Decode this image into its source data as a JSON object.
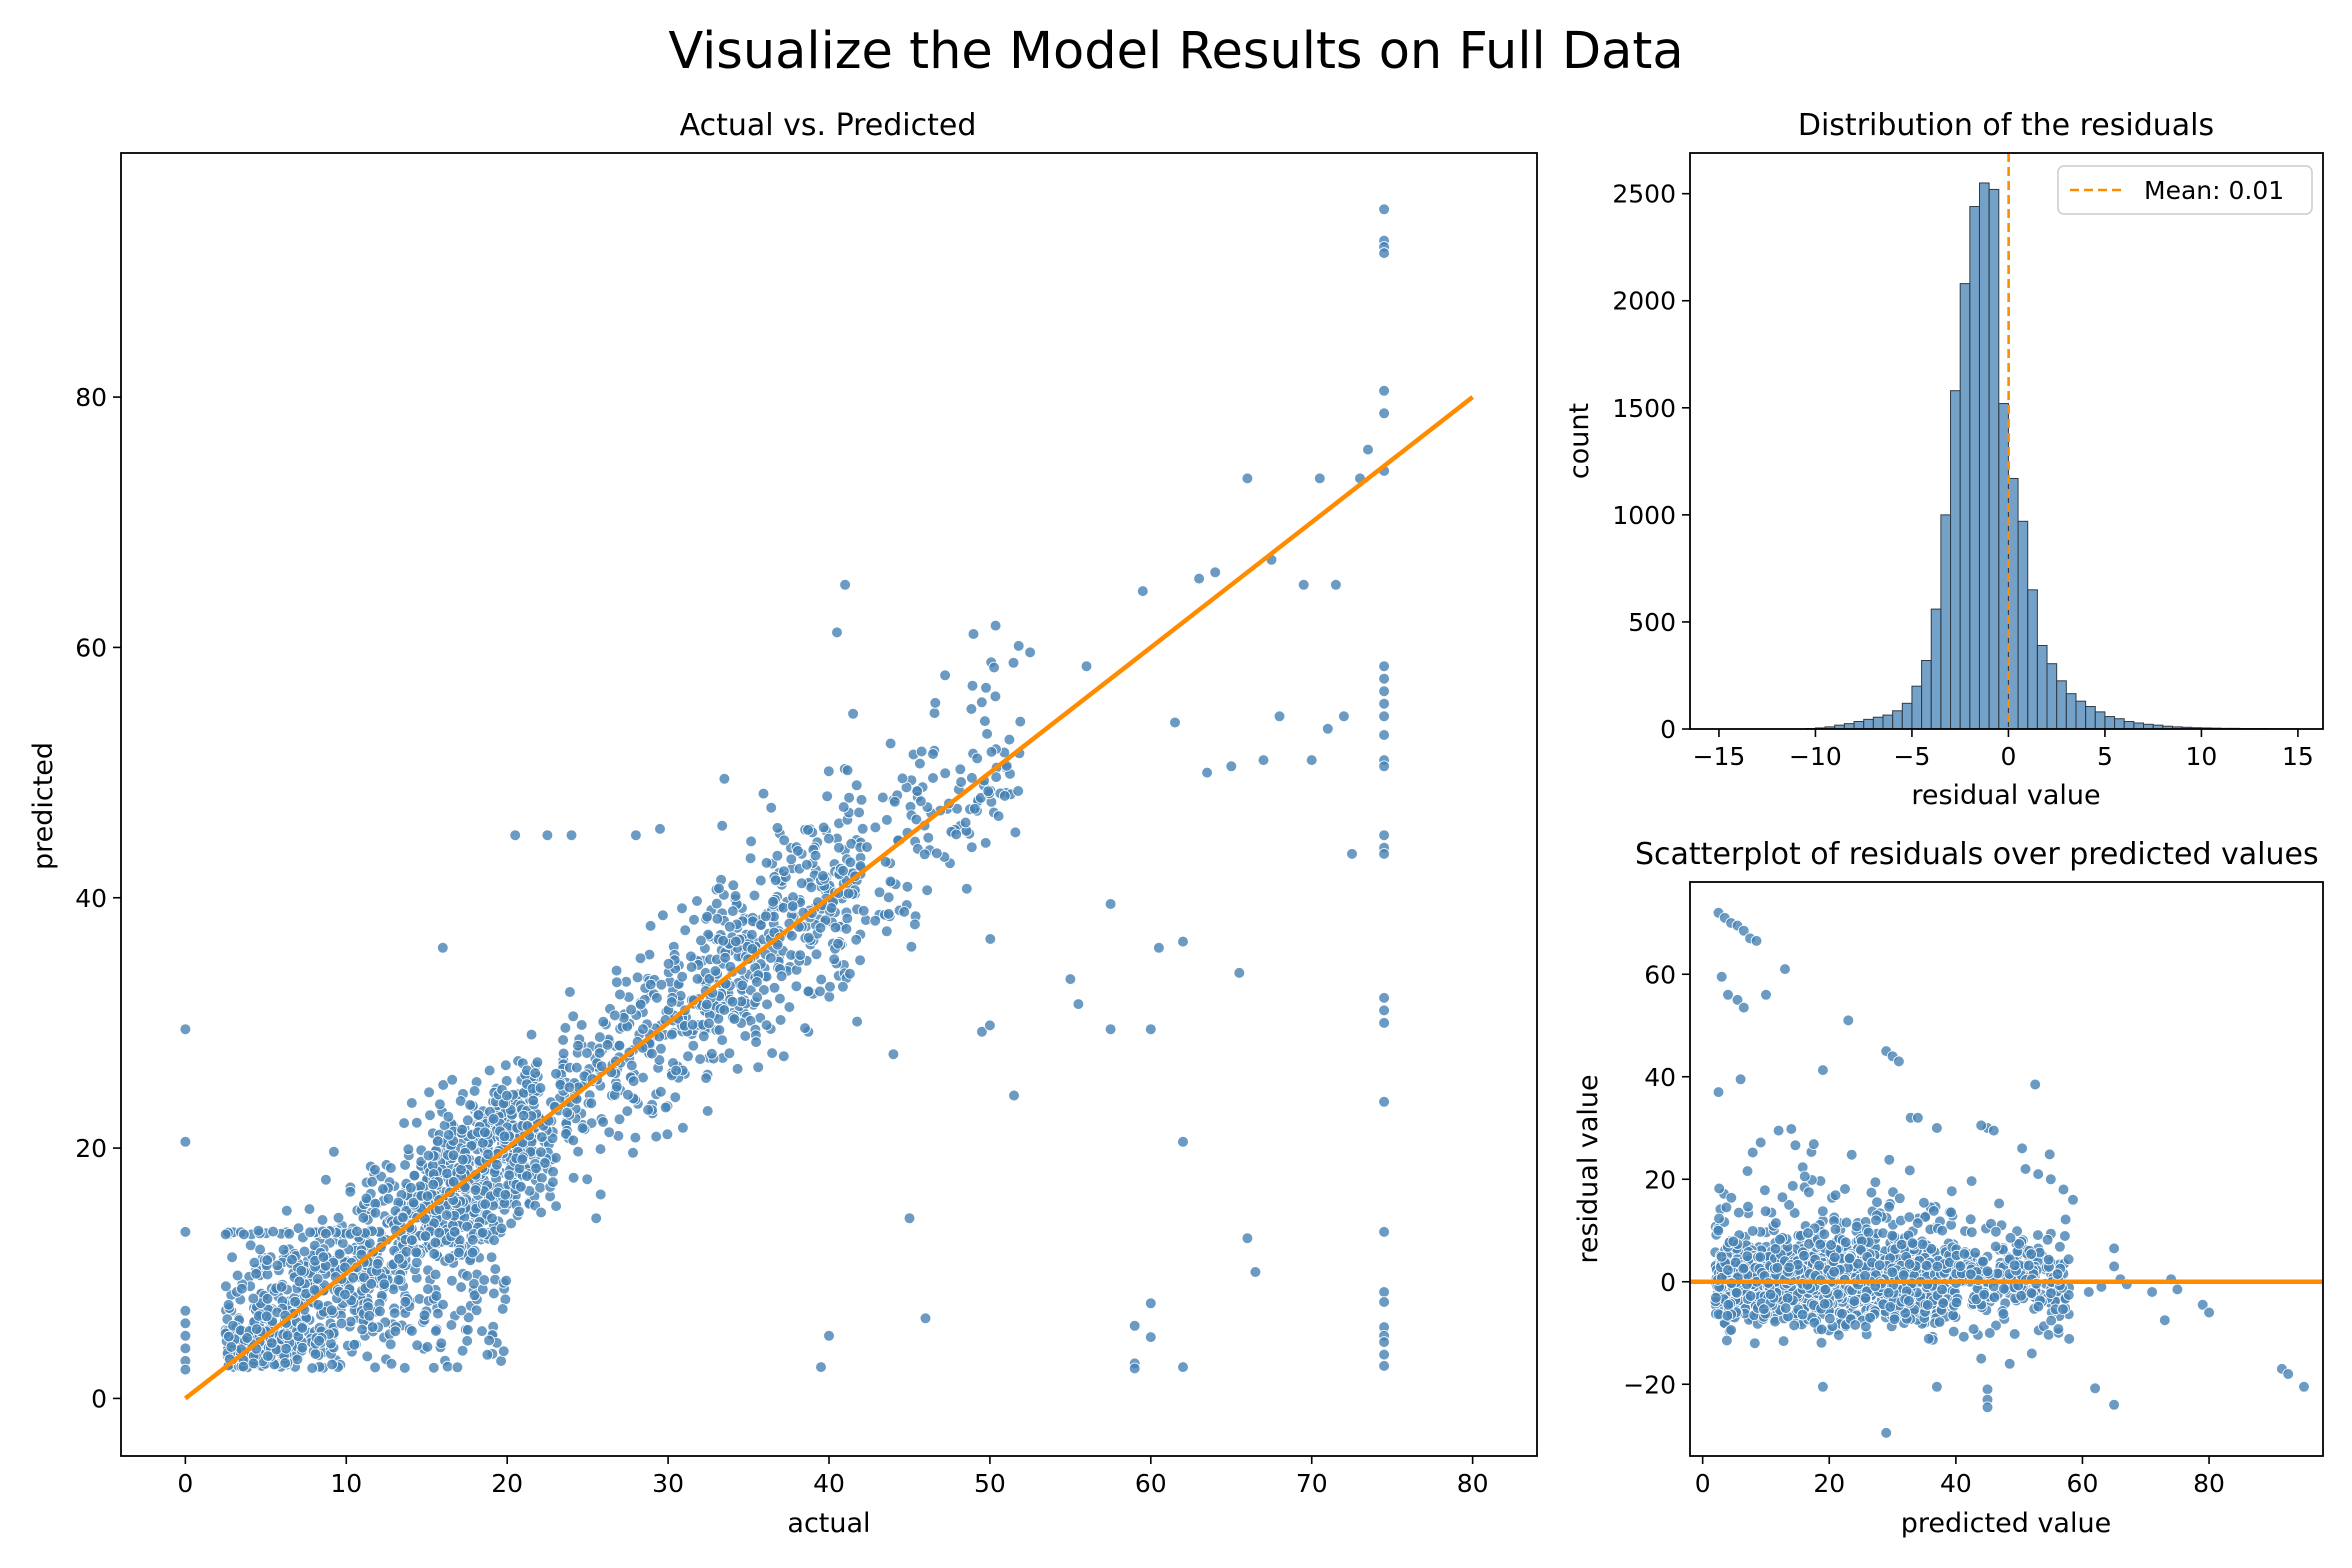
{
  "figure_title": "Visualize the Model Results on Full Data",
  "colors": {
    "points": "#4682b4",
    "line": "#ff8c00",
    "bars": "#4682b4",
    "point_edge": "#ffffff"
  },
  "chart_data": [
    {
      "id": "actual_vs_predicted",
      "type": "scatter",
      "title": "Actual vs. Predicted",
      "xlabel": "actual",
      "ylabel": "predicted",
      "xlim": [
        -4,
        84
      ],
      "ylim": [
        -4.6,
        99.5
      ],
      "xticks": [
        0,
        10,
        20,
        30,
        40,
        50,
        60,
        70,
        80
      ],
      "yticks": [
        0,
        20,
        40,
        60,
        80
      ],
      "reference_line": {
        "x": [
          0,
          80
        ],
        "y": [
          0,
          80
        ]
      },
      "approx_n_points": 20000,
      "cloud": [
        {
          "x_range": [
            2.5,
            22
          ],
          "y_center": "x",
          "spread": 3.0,
          "weight": 0.42
        },
        {
          "x_range": [
            15,
            42
          ],
          "y_center": "x",
          "spread": 4.0,
          "weight": 0.3
        },
        {
          "x_range": [
            32,
            52
          ],
          "y_center": "x",
          "spread": 4.5,
          "weight": 0.12
        }
      ],
      "outliers": [
        {
          "x": 0,
          "y": 29.5
        },
        {
          "x": 0,
          "y": 20.5
        },
        {
          "x": 0,
          "y": 13.3
        },
        {
          "x": 0,
          "y": 7
        },
        {
          "x": 0,
          "y": 6
        },
        {
          "x": 0,
          "y": 5
        },
        {
          "x": 0,
          "y": 4
        },
        {
          "x": 0,
          "y": 3
        },
        {
          "x": 0,
          "y": 2.3
        },
        {
          "x": 16,
          "y": 36
        },
        {
          "x": 20.5,
          "y": 45
        },
        {
          "x": 22.5,
          "y": 45
        },
        {
          "x": 24,
          "y": 45
        },
        {
          "x": 28,
          "y": 45
        },
        {
          "x": 29.5,
          "y": 45.5
        },
        {
          "x": 33.5,
          "y": 49.5
        },
        {
          "x": 40.5,
          "y": 61.2
        },
        {
          "x": 41,
          "y": 65
        },
        {
          "x": 41.5,
          "y": 54.7
        },
        {
          "x": 46,
          "y": 6.4
        },
        {
          "x": 45,
          "y": 14.4
        },
        {
          "x": 40,
          "y": 5
        },
        {
          "x": 39.5,
          "y": 2.5
        },
        {
          "x": 44,
          "y": 27.5
        },
        {
          "x": 49.5,
          "y": 29.3
        },
        {
          "x": 50,
          "y": 29.8
        },
        {
          "x": 51.5,
          "y": 24.2
        },
        {
          "x": 52.5,
          "y": 59.6
        },
        {
          "x": 55,
          "y": 33.5
        },
        {
          "x": 55.5,
          "y": 31.5
        },
        {
          "x": 56,
          "y": 58.5
        },
        {
          "x": 57.5,
          "y": 29.5
        },
        {
          "x": 57.5,
          "y": 39.5
        },
        {
          "x": 59.5,
          "y": 64.5
        },
        {
          "x": 60,
          "y": 29.5
        },
        {
          "x": 60.5,
          "y": 36
        },
        {
          "x": 62,
          "y": 36.5
        },
        {
          "x": 63,
          "y": 65.5
        },
        {
          "x": 64,
          "y": 66
        },
        {
          "x": 65.5,
          "y": 34
        },
        {
          "x": 66,
          "y": 73.5
        },
        {
          "x": 66,
          "y": 12.8
        },
        {
          "x": 66.5,
          "y": 10.1
        },
        {
          "x": 59,
          "y": 5.8
        },
        {
          "x": 59,
          "y": 2.8
        },
        {
          "x": 59,
          "y": 2.4
        },
        {
          "x": 60,
          "y": 4.9
        },
        {
          "x": 60,
          "y": 7.6
        },
        {
          "x": 62,
          "y": 2.5
        },
        {
          "x": 62,
          "y": 20.5
        },
        {
          "x": 67.5,
          "y": 67
        },
        {
          "x": 69.5,
          "y": 65
        },
        {
          "x": 70.5,
          "y": 73.5
        },
        {
          "x": 71.5,
          "y": 65
        },
        {
          "x": 72.5,
          "y": 43.5
        },
        {
          "x": 73,
          "y": 73.5
        },
        {
          "x": 73.5,
          "y": 75.8
        },
        {
          "x": 70,
          "y": 51
        },
        {
          "x": 71,
          "y": 53.5
        },
        {
          "x": 72,
          "y": 54.5
        },
        {
          "x": 68,
          "y": 54.5
        },
        {
          "x": 65,
          "y": 50.5
        },
        {
          "x": 63.5,
          "y": 50
        },
        {
          "x": 61.5,
          "y": 54
        },
        {
          "x": 67,
          "y": 51
        }
      ],
      "vertical_stack": {
        "x": 74.5,
        "y": [
          95,
          92.5,
          92,
          91.5,
          80.5,
          78.7,
          74.1,
          58.5,
          57.5,
          56.5,
          55.5,
          54.5,
          53,
          51,
          50.5,
          45,
          44,
          43.5,
          32,
          31,
          30,
          23.7,
          13.3,
          8.5,
          7.7,
          5.7,
          5,
          4.5,
          3.5,
          2.6
        ]
      },
      "bottom_band": {
        "x_range": [
          2.5,
          20
        ],
        "y_range": [
          2.4,
          13.4
        ]
      }
    },
    {
      "id": "residual_distribution",
      "type": "bar",
      "title": "Distribution of the residuals",
      "xlabel": "residual value",
      "ylabel": "count",
      "xlim": [
        -16.5,
        16.3
      ],
      "ylim": [
        0,
        2690
      ],
      "xticks": [
        -15,
        -10,
        -5,
        0,
        5,
        10,
        15
      ],
      "yticks": [
        0,
        500,
        1000,
        1500,
        2000,
        2500
      ],
      "bin_width": 0.5,
      "bin_start": -10.5,
      "counts": [
        2,
        5,
        10,
        18,
        25,
        35,
        45,
        55,
        65,
        85,
        120,
        200,
        320,
        560,
        1000,
        1580,
        2080,
        2440,
        2550,
        2520,
        1520,
        1170,
        970,
        650,
        390,
        305,
        225,
        165,
        130,
        105,
        80,
        58,
        48,
        35,
        28,
        22,
        18,
        13,
        10,
        8,
        6,
        5,
        4,
        3,
        3,
        2,
        2,
        2,
        1,
        1,
        1
      ],
      "mean_line": {
        "x": 0.01,
        "label": "Mean: 0.01"
      },
      "legend": "top-right"
    },
    {
      "id": "residuals_vs_predicted",
      "type": "scatter",
      "title": "Scatterplot of residuals over predicted values",
      "xlabel": "predicted value",
      "ylabel": "residual value",
      "xlim": [
        -2,
        98
      ],
      "ylim": [
        -34,
        78
      ],
      "xticks": [
        0,
        20,
        40,
        60,
        80
      ],
      "yticks": [
        -20,
        0,
        20,
        40,
        60
      ],
      "reference_line": {
        "y": 0
      },
      "approx_n_points": 20000,
      "cloud": [
        {
          "x_range": [
            2,
            40
          ],
          "y_center": 0,
          "spread": 4,
          "weight": 0.82
        },
        {
          "x_range": [
            40,
            58
          ],
          "y_center": 0,
          "spread": 4.5,
          "weight": 0.13
        }
      ],
      "outliers": [
        {
          "x": 2.5,
          "y": 72
        },
        {
          "x": 3.5,
          "y": 71
        },
        {
          "x": 4.5,
          "y": 70
        },
        {
          "x": 5.5,
          "y": 69.5
        },
        {
          "x": 6.5,
          "y": 68.5
        },
        {
          "x": 7.5,
          "y": 67
        },
        {
          "x": 8.5,
          "y": 66.5
        },
        {
          "x": 3,
          "y": 59.5
        },
        {
          "x": 4,
          "y": 56
        },
        {
          "x": 5.5,
          "y": 55
        },
        {
          "x": 6.5,
          "y": 53.5
        },
        {
          "x": 10,
          "y": 56
        },
        {
          "x": 13,
          "y": 61
        },
        {
          "x": 23,
          "y": 51
        },
        {
          "x": 19,
          "y": 41.3
        },
        {
          "x": 29,
          "y": 45
        },
        {
          "x": 30,
          "y": 44
        },
        {
          "x": 31,
          "y": 43
        },
        {
          "x": 6,
          "y": 39.5
        },
        {
          "x": 2.5,
          "y": 37
        },
        {
          "x": 34,
          "y": 32
        },
        {
          "x": 37,
          "y": 30
        },
        {
          "x": 45,
          "y": 30
        },
        {
          "x": 46,
          "y": 29.5
        },
        {
          "x": 44,
          "y": 30.5
        },
        {
          "x": 12,
          "y": 29.5
        },
        {
          "x": 14,
          "y": 29.8
        },
        {
          "x": 51,
          "y": 22
        },
        {
          "x": 53,
          "y": 21
        },
        {
          "x": 55,
          "y": 20
        },
        {
          "x": 57,
          "y": 18
        },
        {
          "x": 58.5,
          "y": 16
        },
        {
          "x": 29,
          "y": -29.5
        },
        {
          "x": 45,
          "y": -21
        },
        {
          "x": 45,
          "y": -23
        },
        {
          "x": 45,
          "y": -24.5
        },
        {
          "x": 19,
          "y": -20.5
        },
        {
          "x": 37,
          "y": -20.5
        },
        {
          "x": 62,
          "y": -20.8
        },
        {
          "x": 65,
          "y": -24
        },
        {
          "x": 44,
          "y": -15
        },
        {
          "x": 48.5,
          "y": -16
        },
        {
          "x": 52,
          "y": -14
        },
        {
          "x": 65,
          "y": 6.5
        },
        {
          "x": 65,
          "y": 3
        },
        {
          "x": 66,
          "y": 0.5
        },
        {
          "x": 74,
          "y": 0.5
        },
        {
          "x": 75,
          "y": -1.5
        },
        {
          "x": 73,
          "y": -7.5
        },
        {
          "x": 79,
          "y": -4.5
        },
        {
          "x": 80,
          "y": -6
        },
        {
          "x": 63,
          "y": -1
        },
        {
          "x": 61,
          "y": -2
        },
        {
          "x": 67,
          "y": -0.5
        },
        {
          "x": 71,
          "y": -2
        },
        {
          "x": 91.5,
          "y": -17
        },
        {
          "x": 92.5,
          "y": -18
        },
        {
          "x": 95,
          "y": -20.5
        }
      ]
    }
  ]
}
